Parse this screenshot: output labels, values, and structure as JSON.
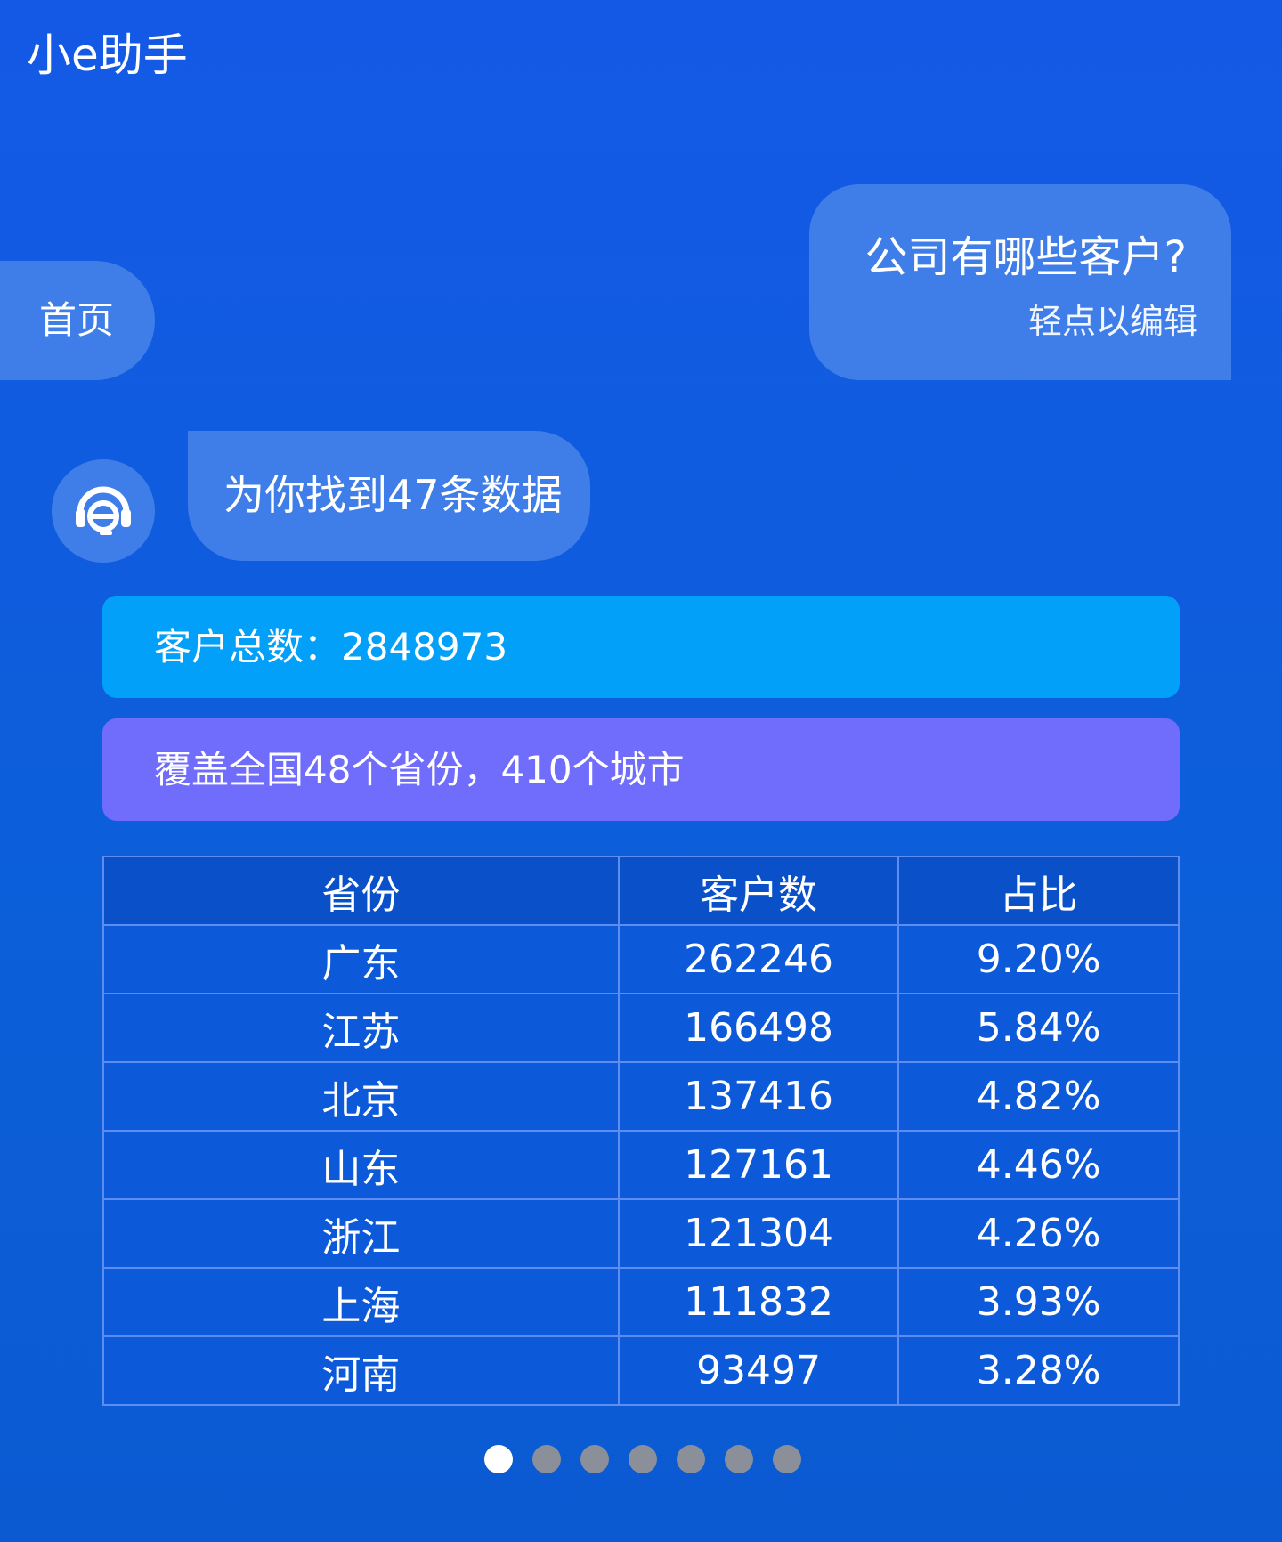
{
  "app": {
    "title": "小e助手"
  },
  "user_message": {
    "text": "公司有哪些客户?",
    "edit_hint": "轻点以编辑"
  },
  "nav": {
    "home_label": "首页"
  },
  "bot": {
    "avatar_icon": "headset-e-icon",
    "reply": "为你找到47条数据"
  },
  "summary": {
    "total_label": "客户总数：2848973",
    "coverage_label": "覆盖全国48个省份，410个城市"
  },
  "table": {
    "headers": [
      "省份",
      "客户数",
      "占比"
    ],
    "rows": [
      [
        "广东",
        "262246",
        "9.20%"
      ],
      [
        "江苏",
        "166498",
        "5.84%"
      ],
      [
        "北京",
        "137416",
        "4.82%"
      ],
      [
        "山东",
        "127161",
        "4.46%"
      ],
      [
        "浙江",
        "121304",
        "4.26%"
      ],
      [
        "上海",
        "111832",
        "3.93%"
      ],
      [
        "河南",
        "93497",
        "3.28%"
      ]
    ]
  },
  "pagination": {
    "pages": 7,
    "current": 1
  },
  "colors": {
    "background": "#1459e6",
    "bubble": "#3f7ee8",
    "total_bar": "#02a0f8",
    "coverage_bar": "#706cfc"
  }
}
